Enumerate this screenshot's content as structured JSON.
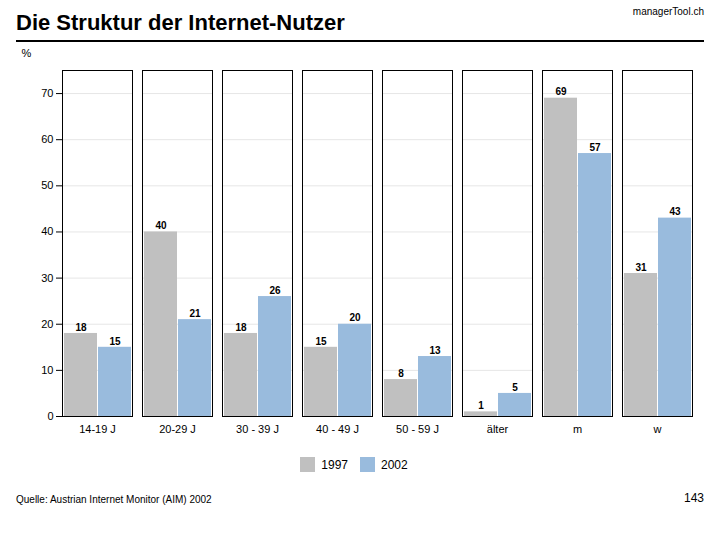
{
  "chart_data": {
    "type": "bar",
    "title": "Die Struktur der Internet-Nutzer",
    "categories": [
      "14-19 J",
      "20-29 J",
      "30 - 39 J",
      "40 - 49 J",
      "50 - 59 J",
      "älter",
      "m",
      "w"
    ],
    "series": [
      {
        "name": "1997",
        "color": "#c0c0c0",
        "values": [
          18,
          40,
          18,
          15,
          8,
          1,
          69,
          31
        ]
      },
      {
        "name": "2002",
        "color": "#99bbdd",
        "values": [
          15,
          21,
          26,
          20,
          13,
          5,
          57,
          43
        ]
      }
    ],
    "ylabel": "%",
    "ylim": [
      0,
      75
    ],
    "yticks": [
      0,
      10,
      20,
      30,
      40,
      50,
      60,
      70
    ],
    "grid": true,
    "data_labels": true,
    "legend": "bottom",
    "annotations": [
      "managerTool.ch",
      "Quelle: Austrian Internet Monitor  (AIM) 2002",
      "143"
    ]
  }
}
